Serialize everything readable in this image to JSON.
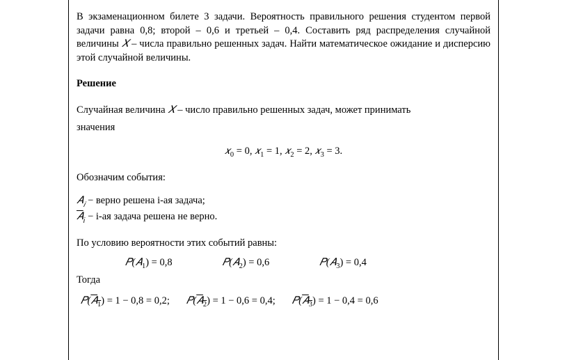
{
  "problem": {
    "text_l1": "В экзаменационном билете 3 задачи. Вероятность правильного решения",
    "text_l2_pre": "студентом первой задачи равна 0,8; второй – 0,6 и третьей – 0,4. Составить ряд",
    "text_l3": "распределения случайной величины ",
    "var": "𝑋",
    "text_l3_post": " – числа правильно решенных задач.",
    "text_l4": "Найти математическое ожидание и дисперсию этой случайной величины."
  },
  "solution_title": "Решение",
  "intro": {
    "part1": "Случайная величина ",
    "var": "𝑋",
    "part2": " – число правильно решенных задач, может принимать",
    "part3": "значения"
  },
  "values_eq": {
    "x0": "𝑥",
    "s0": "0",
    "eq0": " = 0,   ",
    "x1": "𝑥",
    "s1": "1",
    "eq1": " = 1,   ",
    "x2": "𝑥",
    "s2": "2",
    "eq2": " = 2,   ",
    "x3": "𝑥",
    "s3": "3",
    "eq3": " = 3."
  },
  "events_label": "Обозначим события:",
  "event_a": {
    "sym": "𝐴",
    "sub": "𝑖",
    "dash": " − ",
    "text": "верно решена i-ая задача;"
  },
  "event_abar": {
    "sym": "𝐴",
    "sub": "𝑖",
    "dash": " − ",
    "text": "i-ая задача решена не верно."
  },
  "probs_label": "По условию вероятности этих событий равны:",
  "prob_a": {
    "p1": "𝑃(𝐴",
    "s1": "1",
    "v1": ") = 0,8",
    "p2": "𝑃(𝐴",
    "s2": "2",
    "v2": ") = 0,6",
    "p3": "𝑃(𝐴",
    "s3": "3",
    "v3": ") = 0,4"
  },
  "then": "Тогда",
  "prob_abar": {
    "p1_pre": "𝑃(",
    "p1_sym": "𝐴",
    "s1": "1",
    "v1": ") = 1 − 0,8 = 0,2;",
    "p2_pre": "𝑃(",
    "p2_sym": "𝐴",
    "s2": "2",
    "v2": ") = 1 − 0,6 = 0,4;",
    "p3_pre": "𝑃(",
    "p3_sym": "𝐴",
    "s3": "3",
    "v3": ") = 1 − 0,4 = 0,6"
  }
}
